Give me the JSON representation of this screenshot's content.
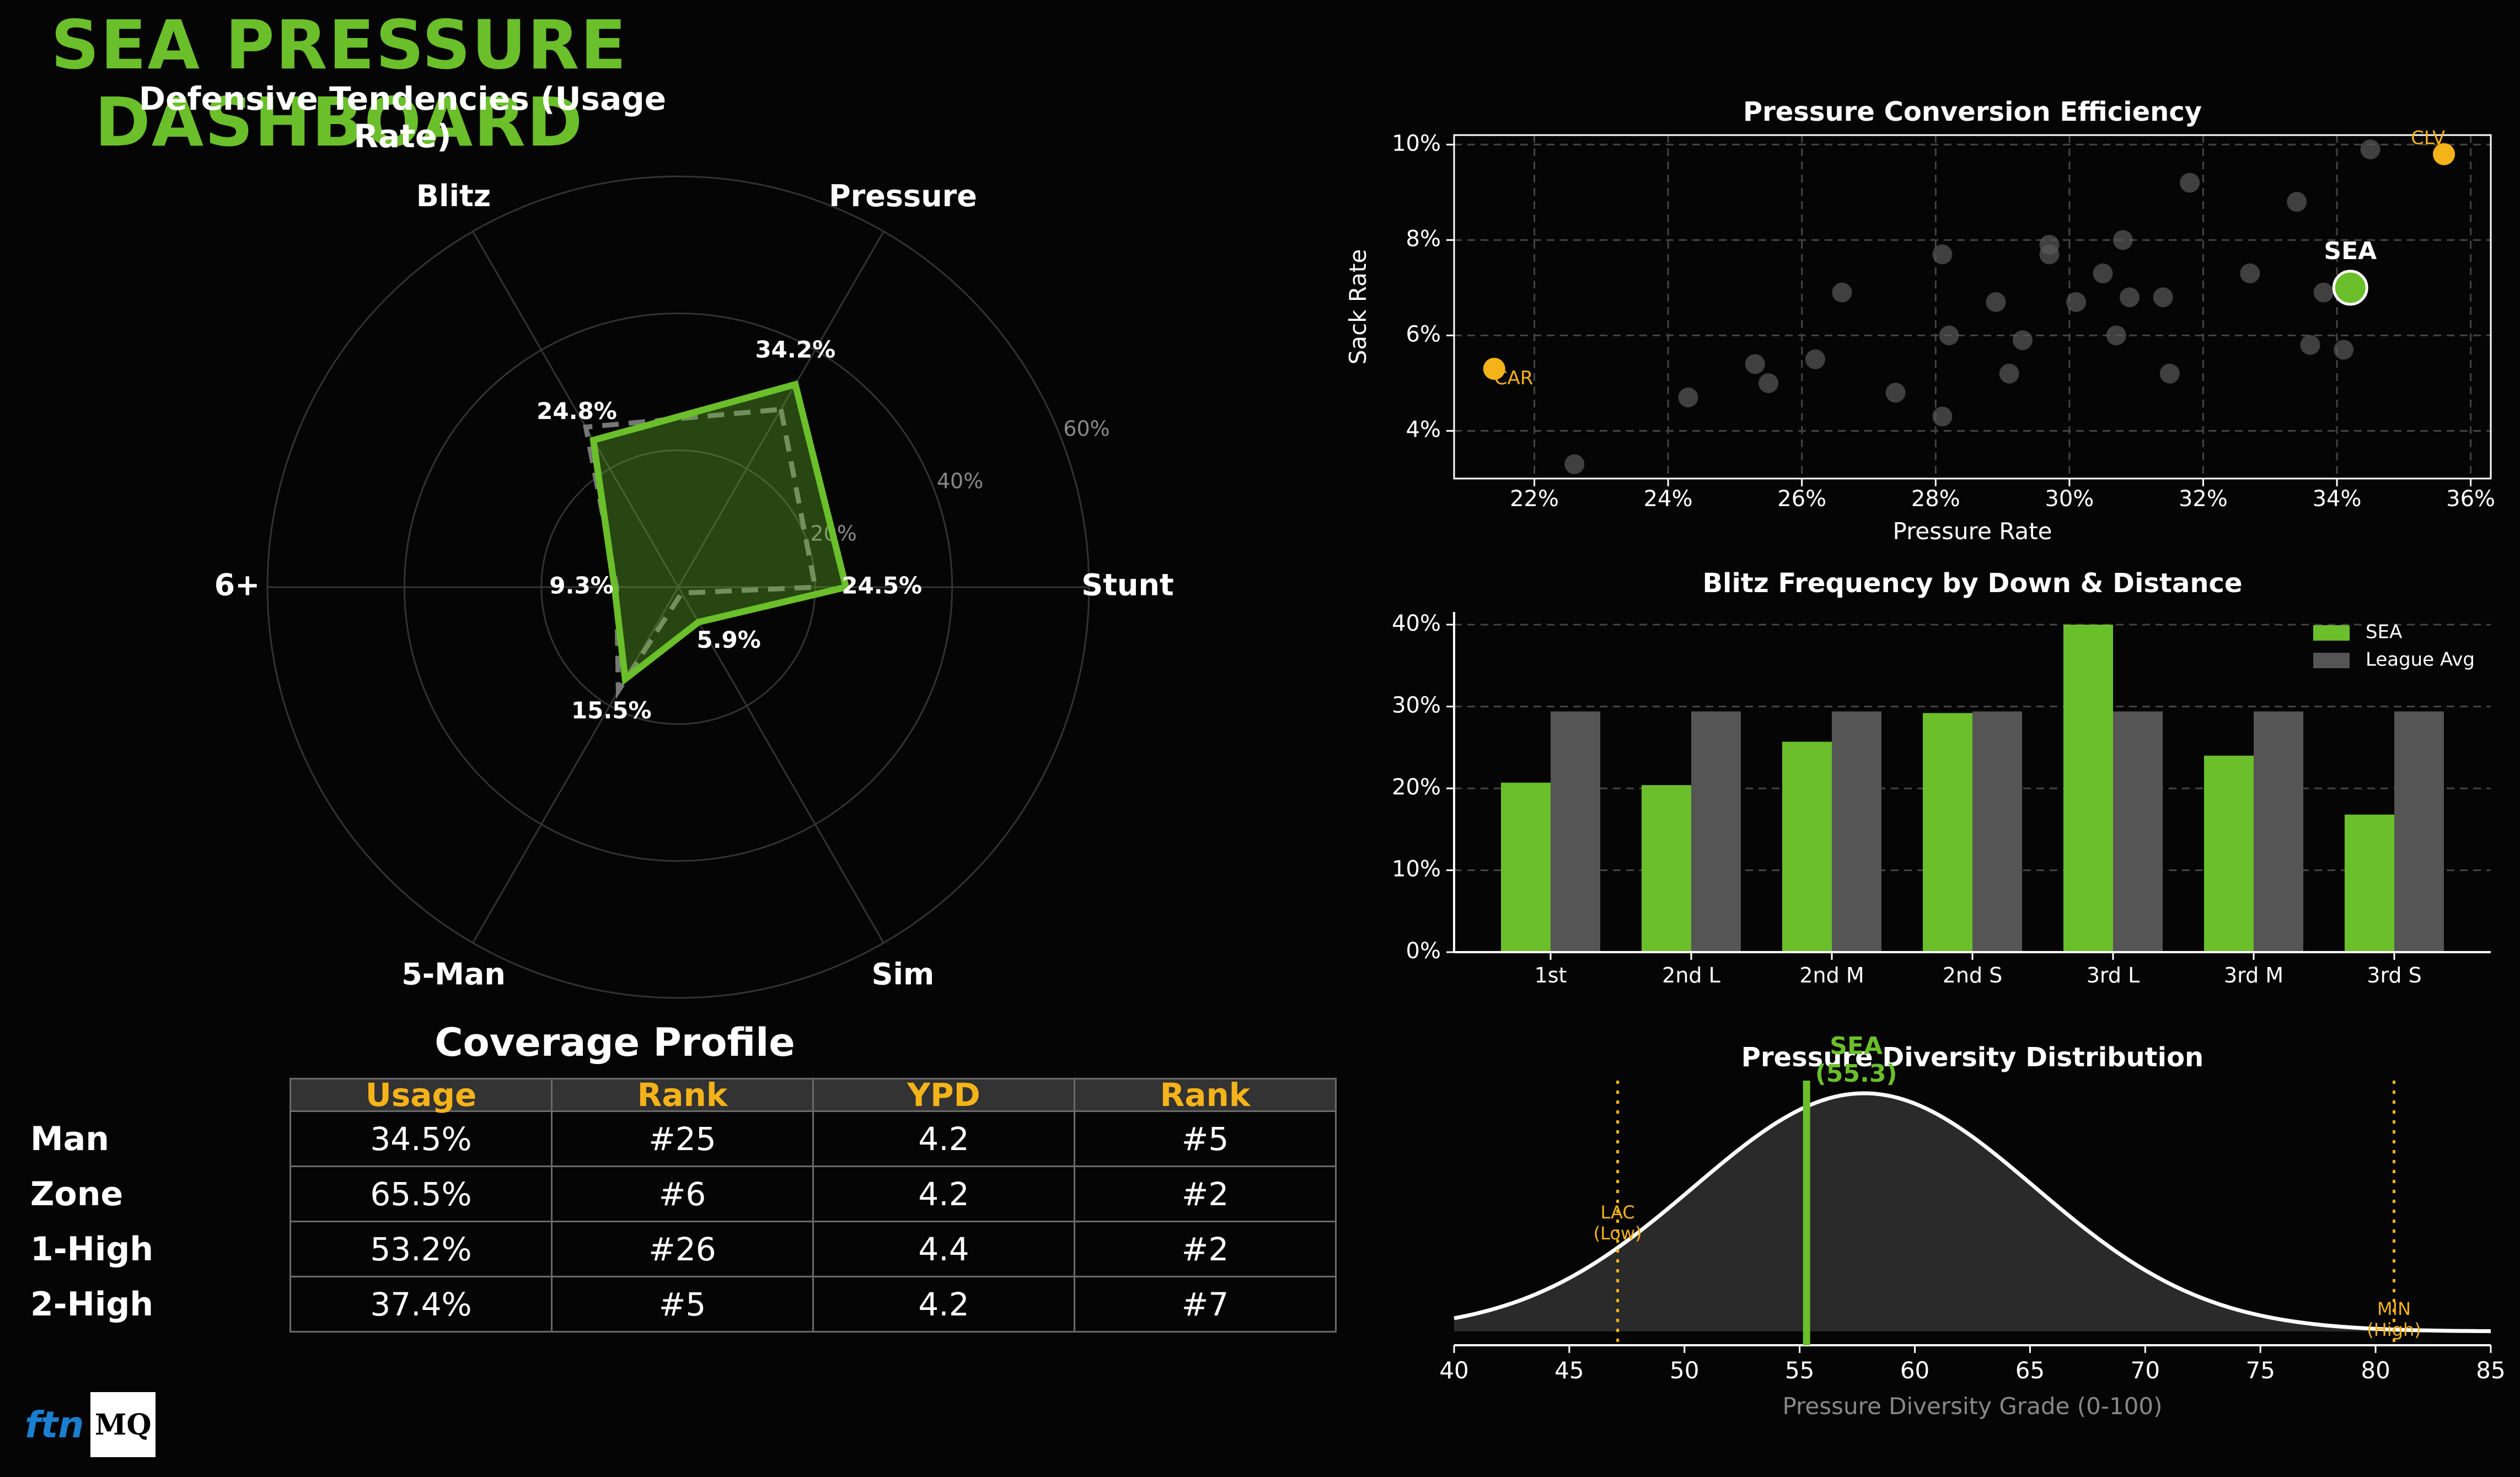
{
  "title": "SEA PRESSURE DASHBOARD",
  "colors": {
    "accent": "#6abf2a",
    "orange": "#f5b31a",
    "league": "#555555",
    "bg": "#050505"
  },
  "radar": {
    "title": "Defensive Tendencies (Usage Rate)",
    "axes": [
      "Pressure",
      "Stunt",
      "Sim",
      "5-Man",
      "6+",
      "Blitz"
    ],
    "sea": [
      34.2,
      24.5,
      5.9,
      15.5,
      9.3,
      24.8
    ],
    "sea_labels": [
      "34.2%",
      "24.5%",
      "5.9%",
      "15.5%",
      "9.3%",
      "24.8%"
    ],
    "league": [
      30.0,
      20.0,
      1.0,
      17.5,
      9.0,
      27.0
    ],
    "rmax": 60,
    "rings": [
      20,
      40,
      60
    ],
    "ring_labels": [
      "20%",
      "40%",
      "60%"
    ]
  },
  "chart_data": [
    {
      "type": "scatter",
      "title": "Pressure Conversion Efficiency",
      "xlabel": "Pressure Rate",
      "ylabel": "Sack Rate",
      "xlim": [
        20.8,
        36.3
      ],
      "ylim": [
        3.0,
        10.2
      ],
      "xticks": [
        "22%",
        "24%",
        "26%",
        "28%",
        "30%",
        "32%",
        "34%",
        "36%"
      ],
      "yticks": [
        "4%",
        "6%",
        "8%",
        "10%"
      ],
      "grid": true,
      "points": [
        {
          "x": 22.6,
          "y": 3.3
        },
        {
          "x": 24.3,
          "y": 4.7
        },
        {
          "x": 25.3,
          "y": 5.4
        },
        {
          "x": 25.5,
          "y": 5.0
        },
        {
          "x": 26.2,
          "y": 5.5
        },
        {
          "x": 26.6,
          "y": 6.9
        },
        {
          "x": 27.4,
          "y": 4.8
        },
        {
          "x": 28.1,
          "y": 4.3
        },
        {
          "x": 28.1,
          "y": 7.7
        },
        {
          "x": 28.2,
          "y": 6.0
        },
        {
          "x": 28.9,
          "y": 6.7
        },
        {
          "x": 29.1,
          "y": 5.2
        },
        {
          "x": 29.3,
          "y": 5.9
        },
        {
          "x": 29.7,
          "y": 7.7
        },
        {
          "x": 29.7,
          "y": 7.9
        },
        {
          "x": 30.1,
          "y": 6.7
        },
        {
          "x": 30.5,
          "y": 7.3
        },
        {
          "x": 30.7,
          "y": 6.0
        },
        {
          "x": 30.8,
          "y": 8.0
        },
        {
          "x": 30.9,
          "y": 6.8
        },
        {
          "x": 31.4,
          "y": 6.8
        },
        {
          "x": 31.5,
          "y": 5.2
        },
        {
          "x": 31.8,
          "y": 9.2
        },
        {
          "x": 32.7,
          "y": 7.3
        },
        {
          "x": 33.4,
          "y": 8.8
        },
        {
          "x": 33.6,
          "y": 5.8
        },
        {
          "x": 33.8,
          "y": 6.9
        },
        {
          "x": 34.1,
          "y": 5.7
        },
        {
          "x": 34.5,
          "y": 9.9
        }
      ],
      "highlights": [
        {
          "label": "SEA",
          "x": 34.2,
          "y": 7.0,
          "color": "#6abf2a"
        },
        {
          "label": "CLV",
          "x": 35.6,
          "y": 9.8,
          "color": "#f5b31a"
        },
        {
          "label": "CAR",
          "x": 21.4,
          "y": 5.3,
          "color": "#f5b31a"
        }
      ]
    },
    {
      "type": "bar",
      "title": "Blitz Frequency by Down & Distance",
      "categories": [
        "1st",
        "2nd L",
        "2nd M",
        "2nd S",
        "3rd L",
        "3rd M",
        "3rd S"
      ],
      "series": [
        {
          "name": "SEA",
          "values": [
            20.7,
            20.4,
            25.7,
            29.2,
            40.0,
            24.0,
            16.8
          ],
          "color": "#6abf2a"
        },
        {
          "name": "League Avg",
          "values": [
            29.4,
            29.4,
            29.4,
            29.4,
            29.4,
            29.4,
            29.4
          ],
          "color": "#555555"
        }
      ],
      "ylim": [
        0,
        40
      ],
      "yticks": [
        "0%",
        "10%",
        "20%",
        "30%",
        "40%"
      ],
      "grid": true,
      "legend": "top-right"
    },
    {
      "type": "area",
      "title": "Pressure Diversity Distribution",
      "xlabel": "Pressure Diversity Grade (0-100)",
      "xlim": [
        40,
        85
      ],
      "xticks": [
        "40",
        "45",
        "50",
        "55",
        "60",
        "65",
        "70",
        "75",
        "80",
        "85"
      ],
      "mean": 57.8,
      "sd": 7.4,
      "markers": [
        {
          "label": "SEA",
          "sublabel": "(55.3)",
          "x": 55.3,
          "color": "#6abf2a"
        },
        {
          "label": "LAC",
          "sublabel": "(Low)",
          "x": 47.1,
          "color": "#f5b31a"
        },
        {
          "label": "MIN",
          "sublabel": "(High)",
          "x": 80.8,
          "color": "#f5b31a"
        }
      ]
    }
  ],
  "coverage": {
    "title": "Coverage Profile",
    "headers": [
      "Usage",
      "Rank",
      "YPD",
      "Rank"
    ],
    "rows": [
      {
        "label": "Man",
        "cells": [
          "34.5%",
          "#25",
          "4.2",
          "#5"
        ]
      },
      {
        "label": "Zone",
        "cells": [
          "65.5%",
          "#6",
          "4.2",
          "#2"
        ]
      },
      {
        "label": "1-High",
        "cells": [
          "53.2%",
          "#26",
          "4.4",
          "#2"
        ]
      },
      {
        "label": "2-High",
        "cells": [
          "37.4%",
          "#5",
          "4.2",
          "#7"
        ]
      }
    ]
  },
  "logo": {
    "ftn": "ftn",
    "mq": "MQ"
  }
}
